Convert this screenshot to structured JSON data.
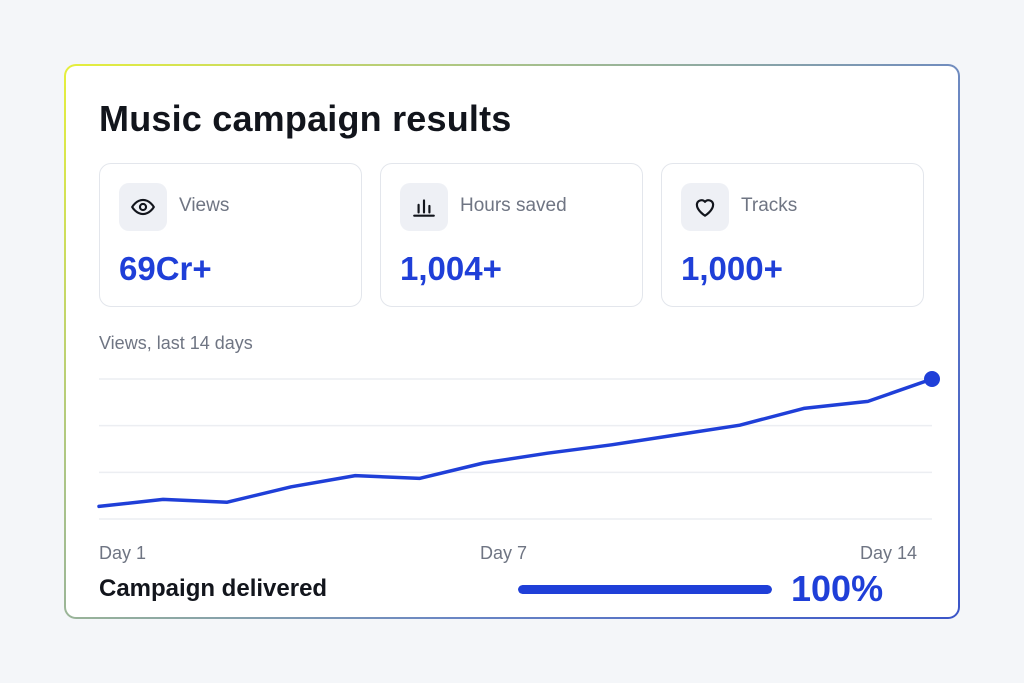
{
  "card": {
    "title": "Music campaign results"
  },
  "stats": [
    {
      "icon": "eye-icon",
      "label": "Views",
      "value": "69Cr+"
    },
    {
      "icon": "bar-chart-icon",
      "label": "Hours saved",
      "value": "1,004+"
    },
    {
      "icon": "heart-icon",
      "label": "Tracks",
      "value": "1,000+"
    }
  ],
  "chart": {
    "caption": "Views, last 14 days",
    "x_labels": [
      "Day 1",
      "Day 7",
      "Day 14"
    ]
  },
  "chart_data": {
    "type": "line",
    "x": [
      1,
      2,
      3,
      4,
      5,
      6,
      7,
      8,
      9,
      10,
      11,
      12,
      13,
      14
    ],
    "values": [
      0.09,
      0.14,
      0.12,
      0.23,
      0.31,
      0.29,
      0.4,
      0.47,
      0.53,
      0.6,
      0.67,
      0.79,
      0.84,
      1.0
    ],
    "xlabel": "",
    "ylabel": "",
    "ylim": [
      0,
      1.0
    ],
    "grid": true,
    "color": "#1f3fd8"
  },
  "footer": {
    "label": "Campaign delivered",
    "progress_value": "100%",
    "progress_fraction": 1.0
  },
  "colors": {
    "accent": "#1f3fd8",
    "text_dark": "#12151c",
    "text_muted": "#6f7583"
  }
}
